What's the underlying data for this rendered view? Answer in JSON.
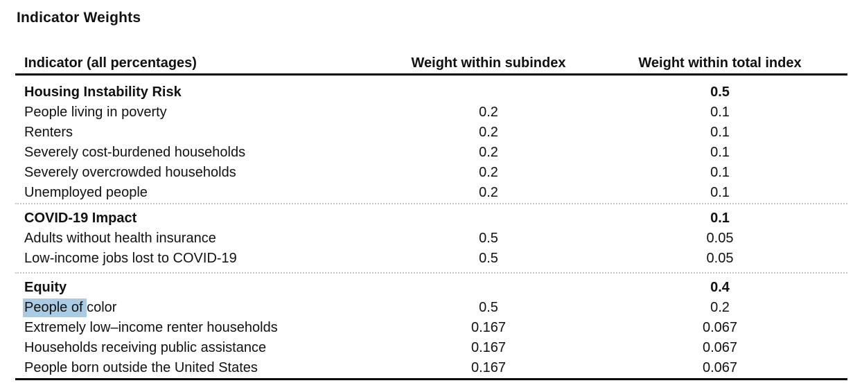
{
  "page_title": "Indicator Weights",
  "colors": {
    "selection_highlight": "#a9cbe4",
    "rule": "#000000",
    "section_divider": "#c6c6c6",
    "text": "#111111",
    "background": "#ffffff"
  },
  "table": {
    "columns": [
      "Indicator (all percentages)",
      "Weight within subindex",
      "Weight within total index"
    ],
    "sections": [
      {
        "header": {
          "label": "Housing Instability Risk",
          "subindex": "",
          "total": "0.5"
        },
        "rows": [
          {
            "label": "People living in poverty",
            "subindex": "0.2",
            "total": "0.1"
          },
          {
            "label": "Renters",
            "subindex": "0.2",
            "total": "0.1"
          },
          {
            "label": "Severely cost-burdened households",
            "subindex": "0.2",
            "total": "0.1"
          },
          {
            "label": "Severely overcrowded households",
            "subindex": "0.2",
            "total": "0.1"
          },
          {
            "label": "Unemployed people",
            "subindex": "0.2",
            "total": "0.1"
          }
        ]
      },
      {
        "header": {
          "label": "COVID-19 Impact",
          "subindex": "",
          "total": "0.1"
        },
        "rows": [
          {
            "label": "Adults without health insurance",
            "subindex": "0.5",
            "total": "0.05"
          },
          {
            "label": "Low-income jobs lost to COVID-19",
            "subindex": "0.5",
            "total": "0.05"
          }
        ]
      },
      {
        "header": {
          "label": "Equity",
          "subindex": "",
          "total": "0.4"
        },
        "rows": [
          {
            "label": "People of color",
            "label_highlighted": "People of ",
            "label_rest": "color",
            "subindex": "0.5",
            "total": "0.2"
          },
          {
            "label": "Extremely low–income renter households",
            "subindex": "0.167",
            "total": "0.067"
          },
          {
            "label": "Households receiving public assistance",
            "subindex": "0.167",
            "total": "0.067"
          },
          {
            "label": "People born outside the United States",
            "subindex": "0.167",
            "total": "0.067"
          }
        ]
      }
    ]
  }
}
